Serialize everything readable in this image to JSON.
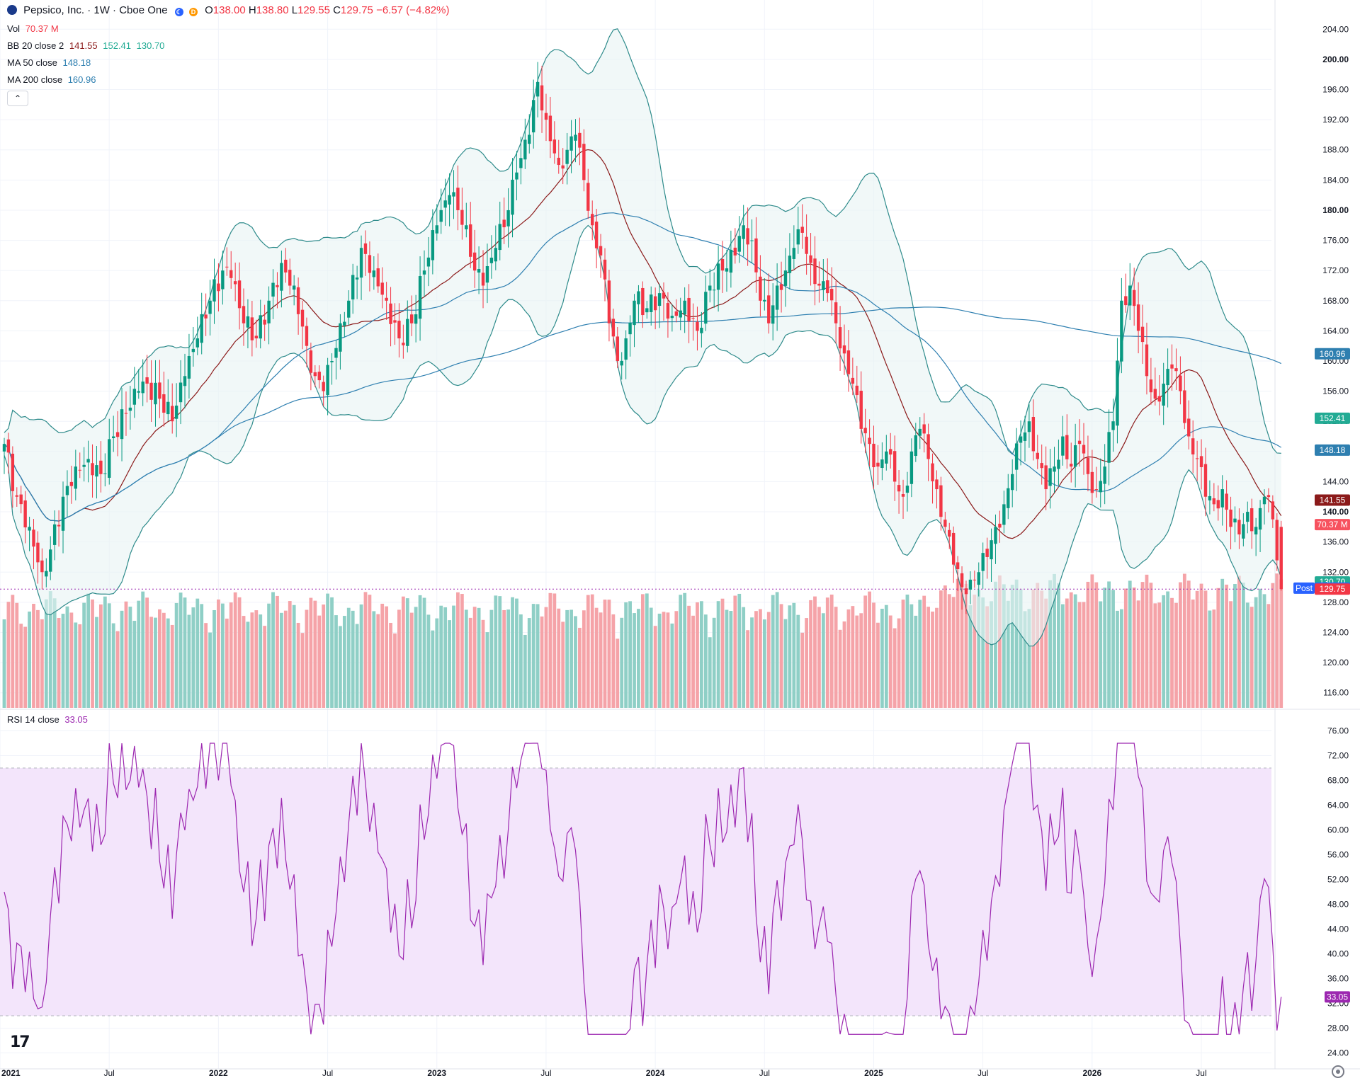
{
  "header": {
    "symbol_title": "Pepsico, Inc. · 1W · Cboe One",
    "ohlc": [
      {
        "label": "O",
        "value": "138.00"
      },
      {
        "label": "H",
        "value": "138.80"
      },
      {
        "label": "L",
        "value": "129.55"
      },
      {
        "label": "C",
        "value": "129.75"
      },
      {
        "label": "",
        "value": "−6.57 (−4.82%)"
      }
    ],
    "badge_d": "D"
  },
  "indicators": {
    "vol": {
      "name": "Vol",
      "value": "70.37 M"
    },
    "bb": {
      "name": "BB",
      "params": "20 close 2",
      "basis": "141.55",
      "upper": "152.41",
      "lower": "130.70"
    },
    "ma50": {
      "name": "MA",
      "params": "50 close",
      "value": "148.18"
    },
    "ma200": {
      "name": "MA",
      "params": "200 close",
      "value": "160.96"
    },
    "rsi": {
      "name": "RSI",
      "params": "14 close",
      "value": "33.05"
    }
  },
  "controls": {
    "collapse": "⌃"
  },
  "colors": {
    "up": "#089981",
    "down": "#f23645",
    "vol_up": "#8fcfc6",
    "vol_down": "#f5a3a8",
    "bb_line": "#2e8b8b",
    "bb_fill": "#e8f4f3",
    "basis": "#8b1a1a",
    "ma50": "#2e7fb0",
    "ma200": "#2e7fb0",
    "rsi_line": "#9c27b0",
    "rsi_band": "#f3e5fb"
  },
  "price_axis": {
    "ticks": [
      "204.00",
      "200.00",
      "196.00",
      "192.00",
      "188.00",
      "184.00",
      "180.00",
      "176.00",
      "172.00",
      "168.00",
      "164.00",
      "160.00",
      "156.00",
      "152.00",
      "148.00",
      "144.00",
      "140.00",
      "136.00",
      "132.00",
      "128.00",
      "124.00",
      "120.00",
      "116.00"
    ],
    "bold_ticks": [
      "200.00",
      "180.00",
      "140.00"
    ],
    "price_labels": [
      {
        "text": "160.96",
        "value": 160.96,
        "color": "#2e7fb0"
      },
      {
        "text": "152.41",
        "value": 152.41,
        "color": "#22ab94"
      },
      {
        "text": "148.18",
        "value": 148.18,
        "color": "#2e7fb0"
      },
      {
        "text": "141.55",
        "value": 141.55,
        "color": "#8b1a1a"
      },
      {
        "text": "70.37 M",
        "value": 138.3,
        "color": "#f7525f"
      },
      {
        "text": "130.70",
        "value": 130.7,
        "color": "#22ab94"
      },
      {
        "text": "129.88",
        "value": 129.88,
        "color": "#2962ff",
        "prefix": "Post"
      },
      {
        "text": "129.75",
        "value": 129.75,
        "color": "#f23645"
      }
    ]
  },
  "rsi_axis": {
    "ticks": [
      "76.00",
      "72.00",
      "68.00",
      "64.00",
      "60.00",
      "56.00",
      "52.00",
      "48.00",
      "44.00",
      "40.00",
      "36.00",
      "32.00",
      "28.00",
      "24.00"
    ],
    "current_label": "33.05"
  },
  "time_axis": [
    "2021",
    "Jul",
    "2022",
    "Jul",
    "2023",
    "Jul",
    "2024",
    "Jul",
    "2025",
    "Jul",
    "2026",
    "Jul"
  ],
  "chart_data": {
    "type": "candlestick",
    "title": "Pepsico, Inc. · 1W · Cboe One",
    "interval": "1W",
    "ylim_price": [
      114,
      206
    ],
    "ylim_rsi": [
      22,
      78
    ],
    "rsi_band": [
      30,
      70
    ],
    "last_close": 129.75,
    "close_anchors": [
      [
        0,
        149
      ],
      [
        3,
        142
      ],
      [
        6,
        138
      ],
      [
        9,
        132
      ],
      [
        11,
        135
      ],
      [
        14,
        142
      ],
      [
        17,
        146
      ],
      [
        20,
        147
      ],
      [
        23,
        145
      ],
      [
        26,
        150
      ],
      [
        29,
        153
      ],
      [
        32,
        156
      ],
      [
        34,
        157
      ],
      [
        37,
        155
      ],
      [
        40,
        152
      ],
      [
        43,
        158
      ],
      [
        46,
        163
      ],
      [
        49,
        168
      ],
      [
        52,
        172
      ],
      [
        54,
        171
      ],
      [
        57,
        165
      ],
      [
        60,
        163
      ],
      [
        63,
        168
      ],
      [
        66,
        173
      ],
      [
        69,
        170
      ],
      [
        72,
        162
      ],
      [
        74,
        158
      ],
      [
        76,
        156
      ],
      [
        78,
        160
      ],
      [
        80,
        165
      ],
      [
        82,
        168
      ],
      [
        85,
        175
      ],
      [
        88,
        172
      ],
      [
        91,
        168
      ],
      [
        94,
        163
      ],
      [
        97,
        165
      ],
      [
        100,
        172
      ],
      [
        103,
        178
      ],
      [
        106,
        182
      ],
      [
        108,
        180
      ],
      [
        110,
        178
      ],
      [
        112,
        172
      ],
      [
        114,
        170
      ],
      [
        117,
        175
      ],
      [
        120,
        180
      ],
      [
        122,
        185
      ],
      [
        125,
        190
      ],
      [
        127,
        197
      ],
      [
        129,
        192
      ],
      [
        132,
        186
      ],
      [
        134,
        188
      ],
      [
        136,
        190
      ],
      [
        138,
        184
      ],
      [
        140,
        178
      ],
      [
        142,
        174
      ],
      [
        144,
        165
      ],
      [
        146,
        160
      ],
      [
        148,
        163
      ],
      [
        150,
        168
      ],
      [
        153,
        167
      ],
      [
        156,
        169
      ],
      [
        159,
        166
      ],
      [
        162,
        168
      ],
      [
        165,
        164
      ],
      [
        168,
        170
      ],
      [
        171,
        172
      ],
      [
        174,
        174
      ],
      [
        176,
        178
      ],
      [
        178,
        176
      ],
      [
        180,
        168
      ],
      [
        182,
        165
      ],
      [
        184,
        170
      ],
      [
        186,
        172
      ],
      [
        188,
        175
      ],
      [
        190,
        177
      ],
      [
        192,
        173
      ],
      [
        194,
        170
      ],
      [
        196,
        169
      ],
      [
        198,
        165
      ],
      [
        200,
        161
      ],
      [
        202,
        157
      ],
      [
        204,
        151
      ],
      [
        206,
        149
      ],
      [
        208,
        146
      ],
      [
        210,
        148
      ],
      [
        212,
        144
      ],
      [
        214,
        142
      ],
      [
        216,
        148
      ],
      [
        218,
        151
      ],
      [
        220,
        147
      ],
      [
        222,
        143
      ],
      [
        224,
        138
      ],
      [
        226,
        133
      ],
      [
        228,
        130
      ],
      [
        230,
        131
      ],
      [
        232,
        132
      ],
      [
        234,
        134
      ],
      [
        236,
        138
      ],
      [
        238,
        141
      ],
      [
        240,
        145
      ],
      [
        242,
        150
      ],
      [
        244,
        152
      ],
      [
        246,
        147
      ],
      [
        248,
        143
      ],
      [
        250,
        146
      ],
      [
        252,
        150
      ],
      [
        254,
        146
      ],
      [
        256,
        149
      ],
      [
        258,
        145
      ],
      [
        260,
        143
      ],
      [
        262,
        146
      ],
      [
        264,
        152
      ],
      [
        266,
        168
      ],
      [
        268,
        170
      ],
      [
        270,
        164
      ],
      [
        272,
        158
      ],
      [
        274,
        155
      ],
      [
        276,
        157
      ],
      [
        278,
        159
      ],
      [
        280,
        156
      ],
      [
        282,
        150
      ],
      [
        284,
        147
      ],
      [
        286,
        142
      ],
      [
        288,
        141
      ],
      [
        290,
        143
      ],
      [
        292,
        138
      ],
      [
        294,
        137
      ],
      [
        296,
        140
      ],
      [
        298,
        138
      ],
      [
        300,
        142
      ],
      [
        302,
        139
      ],
      [
        304,
        129.75
      ]
    ],
    "volume_shown_last": "70.37 M",
    "rsi_last": 33.05
  }
}
